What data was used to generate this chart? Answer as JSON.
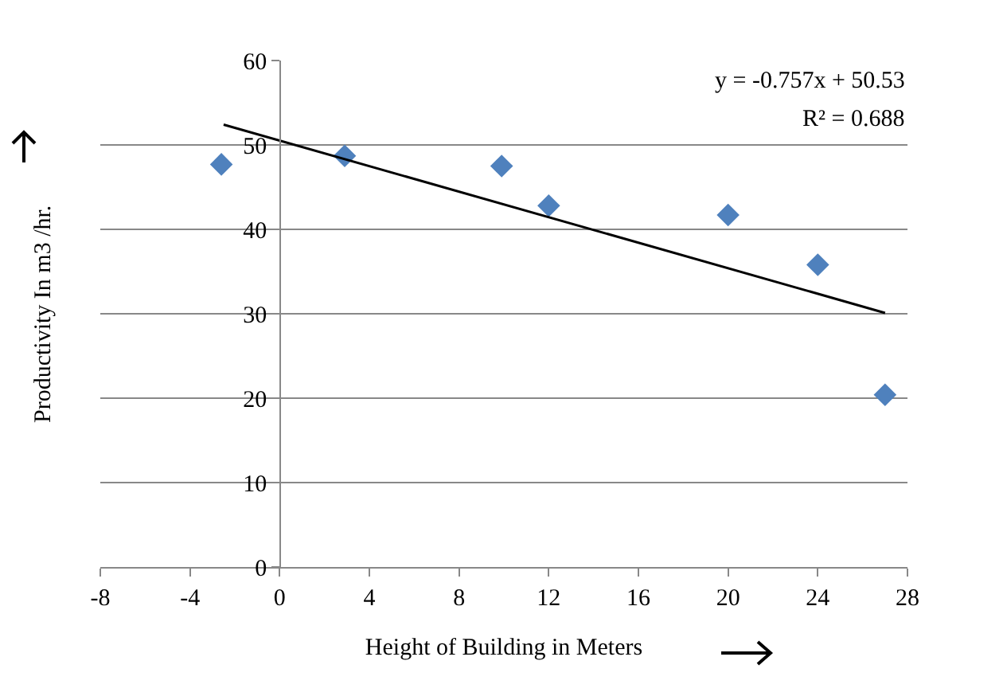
{
  "chart_data": {
    "type": "scatter",
    "xlabel": "Height of Building in Meters",
    "ylabel": "Productivity In m3 /hr.",
    "xlim": [
      -8,
      28
    ],
    "xticks": [
      -8,
      -4,
      0,
      4,
      8,
      12,
      16,
      20,
      24,
      28
    ],
    "ylim": [
      0,
      60
    ],
    "yticks": [
      0,
      10,
      20,
      30,
      40,
      50,
      60
    ],
    "grid": "y",
    "marker": "diamond",
    "series": [
      {
        "color": "#4f81bd",
        "x": [
          -2.6,
          2.9,
          9.9,
          12,
          20,
          24,
          27
        ],
        "values": [
          47.7,
          48.7,
          47.5,
          42.8,
          41.7,
          35.8,
          20.4
        ]
      },
      {
        "type": "line",
        "marker": "none",
        "color": "#000000",
        "x": [
          -2.5,
          27
        ],
        "values": [
          52.4,
          30.1
        ]
      }
    ],
    "annotations": [
      "y = -0.757x + 50.53",
      "R² = 0.688"
    ]
  }
}
